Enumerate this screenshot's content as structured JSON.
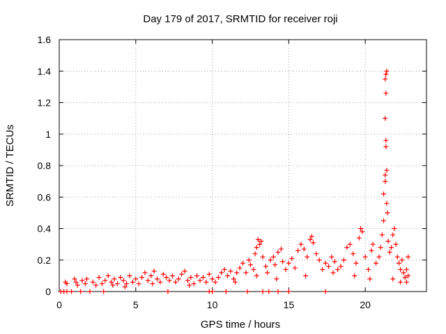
{
  "chart_data": {
    "type": "scatter",
    "title": "Day 179 of 2017, SRMTID for receiver roji",
    "xlabel": "GPS time / hours",
    "ylabel": "SRMTID / TECUs",
    "xlim": [
      0,
      24
    ],
    "ylim": [
      0,
      1.6
    ],
    "x_ticks": [
      0,
      5,
      10,
      15,
      20
    ],
    "x_tick_labels": [
      "0",
      "5",
      "10",
      "15",
      "20"
    ],
    "y_ticks": [
      0,
      0.2,
      0.4,
      0.6,
      0.8,
      1,
      1.2,
      1.4,
      1.6
    ],
    "y_tick_labels": [
      "0",
      "0.2",
      "0.4",
      "0.6",
      "0.8",
      "1",
      "1.2",
      "1.4",
      "1.6"
    ],
    "grid": true,
    "marker": "+",
    "color": "#ff0000",
    "series": [
      {
        "name": "SRMTID",
        "points": [
          [
            0.1,
            0.0
          ],
          [
            0.3,
            0.0
          ],
          [
            0.5,
            0.0
          ],
          [
            0.8,
            0.0
          ],
          [
            1.4,
            0.0
          ],
          [
            2.0,
            0.0
          ],
          [
            2.9,
            0.0
          ],
          [
            7.1,
            0.0
          ],
          [
            9.8,
            0.0
          ],
          [
            10.0,
            0.0
          ],
          [
            10.9,
            0.0
          ],
          [
            12.3,
            0.0
          ],
          [
            13.3,
            0.0
          ],
          [
            13.7,
            0.0
          ],
          [
            14.3,
            0.0
          ],
          [
            15.0,
            0.0
          ],
          [
            17.4,
            0.0
          ],
          [
            0.4,
            0.06
          ],
          [
            0.5,
            0.05
          ],
          [
            1.0,
            0.08
          ],
          [
            1.1,
            0.06
          ],
          [
            1.2,
            0.04
          ],
          [
            1.5,
            0.07
          ],
          [
            1.7,
            0.05
          ],
          [
            1.8,
            0.08
          ],
          [
            2.2,
            0.06
          ],
          [
            2.4,
            0.04
          ],
          [
            2.6,
            0.09
          ],
          [
            2.8,
            0.05
          ],
          [
            3.0,
            0.07
          ],
          [
            3.2,
            0.1
          ],
          [
            3.4,
            0.06
          ],
          [
            3.6,
            0.08
          ],
          [
            3.8,
            0.05
          ],
          [
            4.0,
            0.09
          ],
          [
            4.2,
            0.07
          ],
          [
            4.4,
            0.05
          ],
          [
            4.6,
            0.1
          ],
          [
            4.8,
            0.06
          ],
          [
            5.0,
            0.08
          ],
          [
            5.2,
            0.05
          ],
          [
            5.4,
            0.09
          ],
          [
            5.6,
            0.12
          ],
          [
            5.8,
            0.07
          ],
          [
            6.0,
            0.1
          ],
          [
            6.2,
            0.13
          ],
          [
            6.4,
            0.08
          ],
          [
            6.6,
            0.06
          ],
          [
            6.8,
            0.11
          ],
          [
            7.0,
            0.09
          ],
          [
            7.2,
            0.07
          ],
          [
            7.4,
            0.1
          ],
          [
            7.6,
            0.06
          ],
          [
            7.8,
            0.08
          ],
          [
            8.0,
            0.11
          ],
          [
            8.2,
            0.13
          ],
          [
            8.4,
            0.07
          ],
          [
            8.6,
            0.09
          ],
          [
            8.8,
            0.05
          ],
          [
            9.0,
            0.1
          ],
          [
            9.2,
            0.07
          ],
          [
            9.4,
            0.09
          ],
          [
            9.6,
            0.06
          ],
          [
            9.8,
            0.11
          ],
          [
            10.0,
            0.08
          ],
          [
            10.2,
            0.06
          ],
          [
            10.4,
            0.09
          ],
          [
            10.6,
            0.12
          ],
          [
            10.8,
            0.14
          ],
          [
            11.0,
            0.1
          ],
          [
            11.2,
            0.13
          ],
          [
            11.4,
            0.08
          ],
          [
            11.6,
            0.12
          ],
          [
            11.8,
            0.15
          ],
          [
            12.0,
            0.18
          ],
          [
            12.2,
            0.12
          ],
          [
            12.4,
            0.2
          ],
          [
            12.5,
            0.17
          ],
          [
            12.7,
            0.14
          ],
          [
            12.8,
            0.24
          ],
          [
            12.9,
            0.28
          ],
          [
            13.0,
            0.33
          ],
          [
            13.1,
            0.3
          ],
          [
            13.2,
            0.32
          ],
          [
            13.3,
            0.22
          ],
          [
            13.5,
            0.16
          ],
          [
            13.6,
            0.12
          ],
          [
            13.8,
            0.2
          ],
          [
            14.0,
            0.22
          ],
          [
            14.1,
            0.17
          ],
          [
            14.3,
            0.25
          ],
          [
            14.5,
            0.27
          ],
          [
            14.6,
            0.19
          ],
          [
            14.8,
            0.14
          ],
          [
            15.0,
            0.18
          ],
          [
            15.2,
            0.21
          ],
          [
            15.4,
            0.15
          ],
          [
            15.6,
            0.26
          ],
          [
            15.8,
            0.3
          ],
          [
            16.0,
            0.27
          ],
          [
            16.2,
            0.22
          ],
          [
            16.4,
            0.33
          ],
          [
            16.5,
            0.35
          ],
          [
            16.6,
            0.31
          ],
          [
            16.8,
            0.24
          ],
          [
            17.0,
            0.2
          ],
          [
            17.2,
            0.14
          ],
          [
            17.4,
            0.18
          ],
          [
            17.6,
            0.16
          ],
          [
            17.8,
            0.22
          ],
          [
            18.0,
            0.19
          ],
          [
            18.2,
            0.14
          ],
          [
            18.4,
            0.16
          ],
          [
            18.6,
            0.2
          ],
          [
            18.8,
            0.28
          ],
          [
            19.0,
            0.3
          ],
          [
            19.2,
            0.24
          ],
          [
            19.4,
            0.18
          ],
          [
            19.6,
            0.34
          ],
          [
            19.7,
            0.4
          ],
          [
            19.8,
            0.38
          ],
          [
            20.0,
            0.22
          ],
          [
            20.2,
            0.14
          ],
          [
            20.4,
            0.26
          ],
          [
            20.5,
            0.3
          ],
          [
            20.7,
            0.18
          ],
          [
            20.9,
            0.22
          ],
          [
            21.0,
            0.28
          ],
          [
            21.1,
            0.36
          ],
          [
            21.2,
            0.45
          ],
          [
            21.2,
            0.62
          ],
          [
            21.3,
            0.7
          ],
          [
            21.3,
            0.74
          ],
          [
            21.35,
            0.92
          ],
          [
            21.35,
            0.96
          ],
          [
            21.3,
            1.1
          ],
          [
            21.35,
            1.26
          ],
          [
            21.3,
            1.35
          ],
          [
            21.35,
            1.38
          ],
          [
            21.4,
            1.4
          ],
          [
            21.4,
            0.77
          ],
          [
            21.4,
            0.56
          ],
          [
            21.45,
            0.5
          ],
          [
            21.5,
            0.32
          ],
          [
            21.6,
            0.25
          ],
          [
            21.7,
            0.28
          ],
          [
            21.8,
            0.36
          ],
          [
            21.9,
            0.4
          ],
          [
            22.0,
            0.3
          ],
          [
            22.1,
            0.22
          ],
          [
            22.2,
            0.18
          ],
          [
            22.3,
            0.14
          ],
          [
            22.4,
            0.2
          ],
          [
            22.5,
            0.12
          ],
          [
            22.6,
            0.09
          ],
          [
            22.7,
            0.14
          ],
          [
            22.8,
            0.22
          ],
          [
            22.8,
            0.1
          ],
          [
            22.7,
            0.06
          ],
          [
            3.5,
            0.04
          ],
          [
            4.3,
            0.03
          ],
          [
            6.1,
            0.05
          ],
          [
            8.5,
            0.04
          ],
          [
            11.5,
            0.06
          ],
          [
            12.9,
            0.1
          ],
          [
            14.2,
            0.08
          ],
          [
            16.1,
            0.1
          ],
          [
            17.9,
            0.12
          ],
          [
            19.3,
            0.1
          ],
          [
            20.3,
            0.08
          ],
          [
            21.8,
            0.08
          ],
          [
            22.3,
            0.06
          ]
        ]
      }
    ]
  }
}
